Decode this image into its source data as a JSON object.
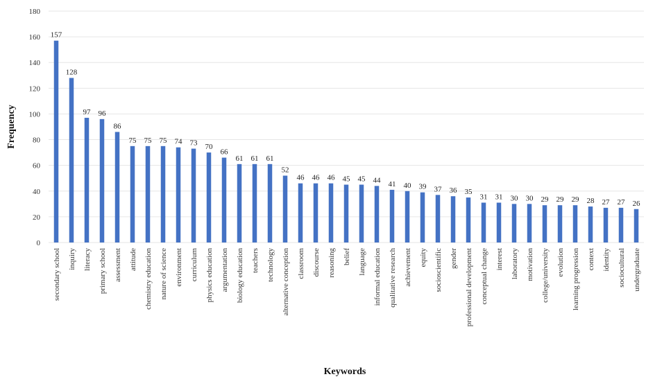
{
  "chart_data": {
    "type": "bar",
    "title": "",
    "xlabel": "Keywords",
    "ylabel": "Frequency",
    "ylim": [
      0,
      180
    ],
    "yticks": [
      0,
      20,
      40,
      60,
      80,
      100,
      120,
      140,
      160,
      180
    ],
    "grid": true,
    "bar_color": "#4472C4",
    "categories": [
      "secondary school",
      "inquiry",
      "literacy",
      "primary school",
      "assessment",
      "attitude",
      "chemistry education",
      "nature of science",
      "environment",
      "curriculum",
      "physics education",
      "argumentation",
      "biology education",
      "teachers",
      "technology",
      "alternative conception",
      "classroom",
      "discourse",
      "reasoning",
      "belief",
      "language",
      "informal education",
      "qualitative research",
      "achievement",
      "equity",
      "socioscientific",
      "gender",
      "professional development",
      "conceptual change",
      "interest",
      "laboratory",
      "motivation",
      "college/university",
      "evolution",
      "learning progression",
      "context",
      "identity",
      "sociocultural",
      "undergraduate"
    ],
    "values": [
      157,
      128,
      97,
      96,
      86,
      75,
      75,
      75,
      74,
      73,
      70,
      66,
      61,
      61,
      61,
      52,
      46,
      46,
      46,
      45,
      45,
      44,
      41,
      40,
      39,
      37,
      36,
      35,
      31,
      31,
      30,
      30,
      29,
      29,
      29,
      28,
      27,
      27,
      26
    ]
  }
}
